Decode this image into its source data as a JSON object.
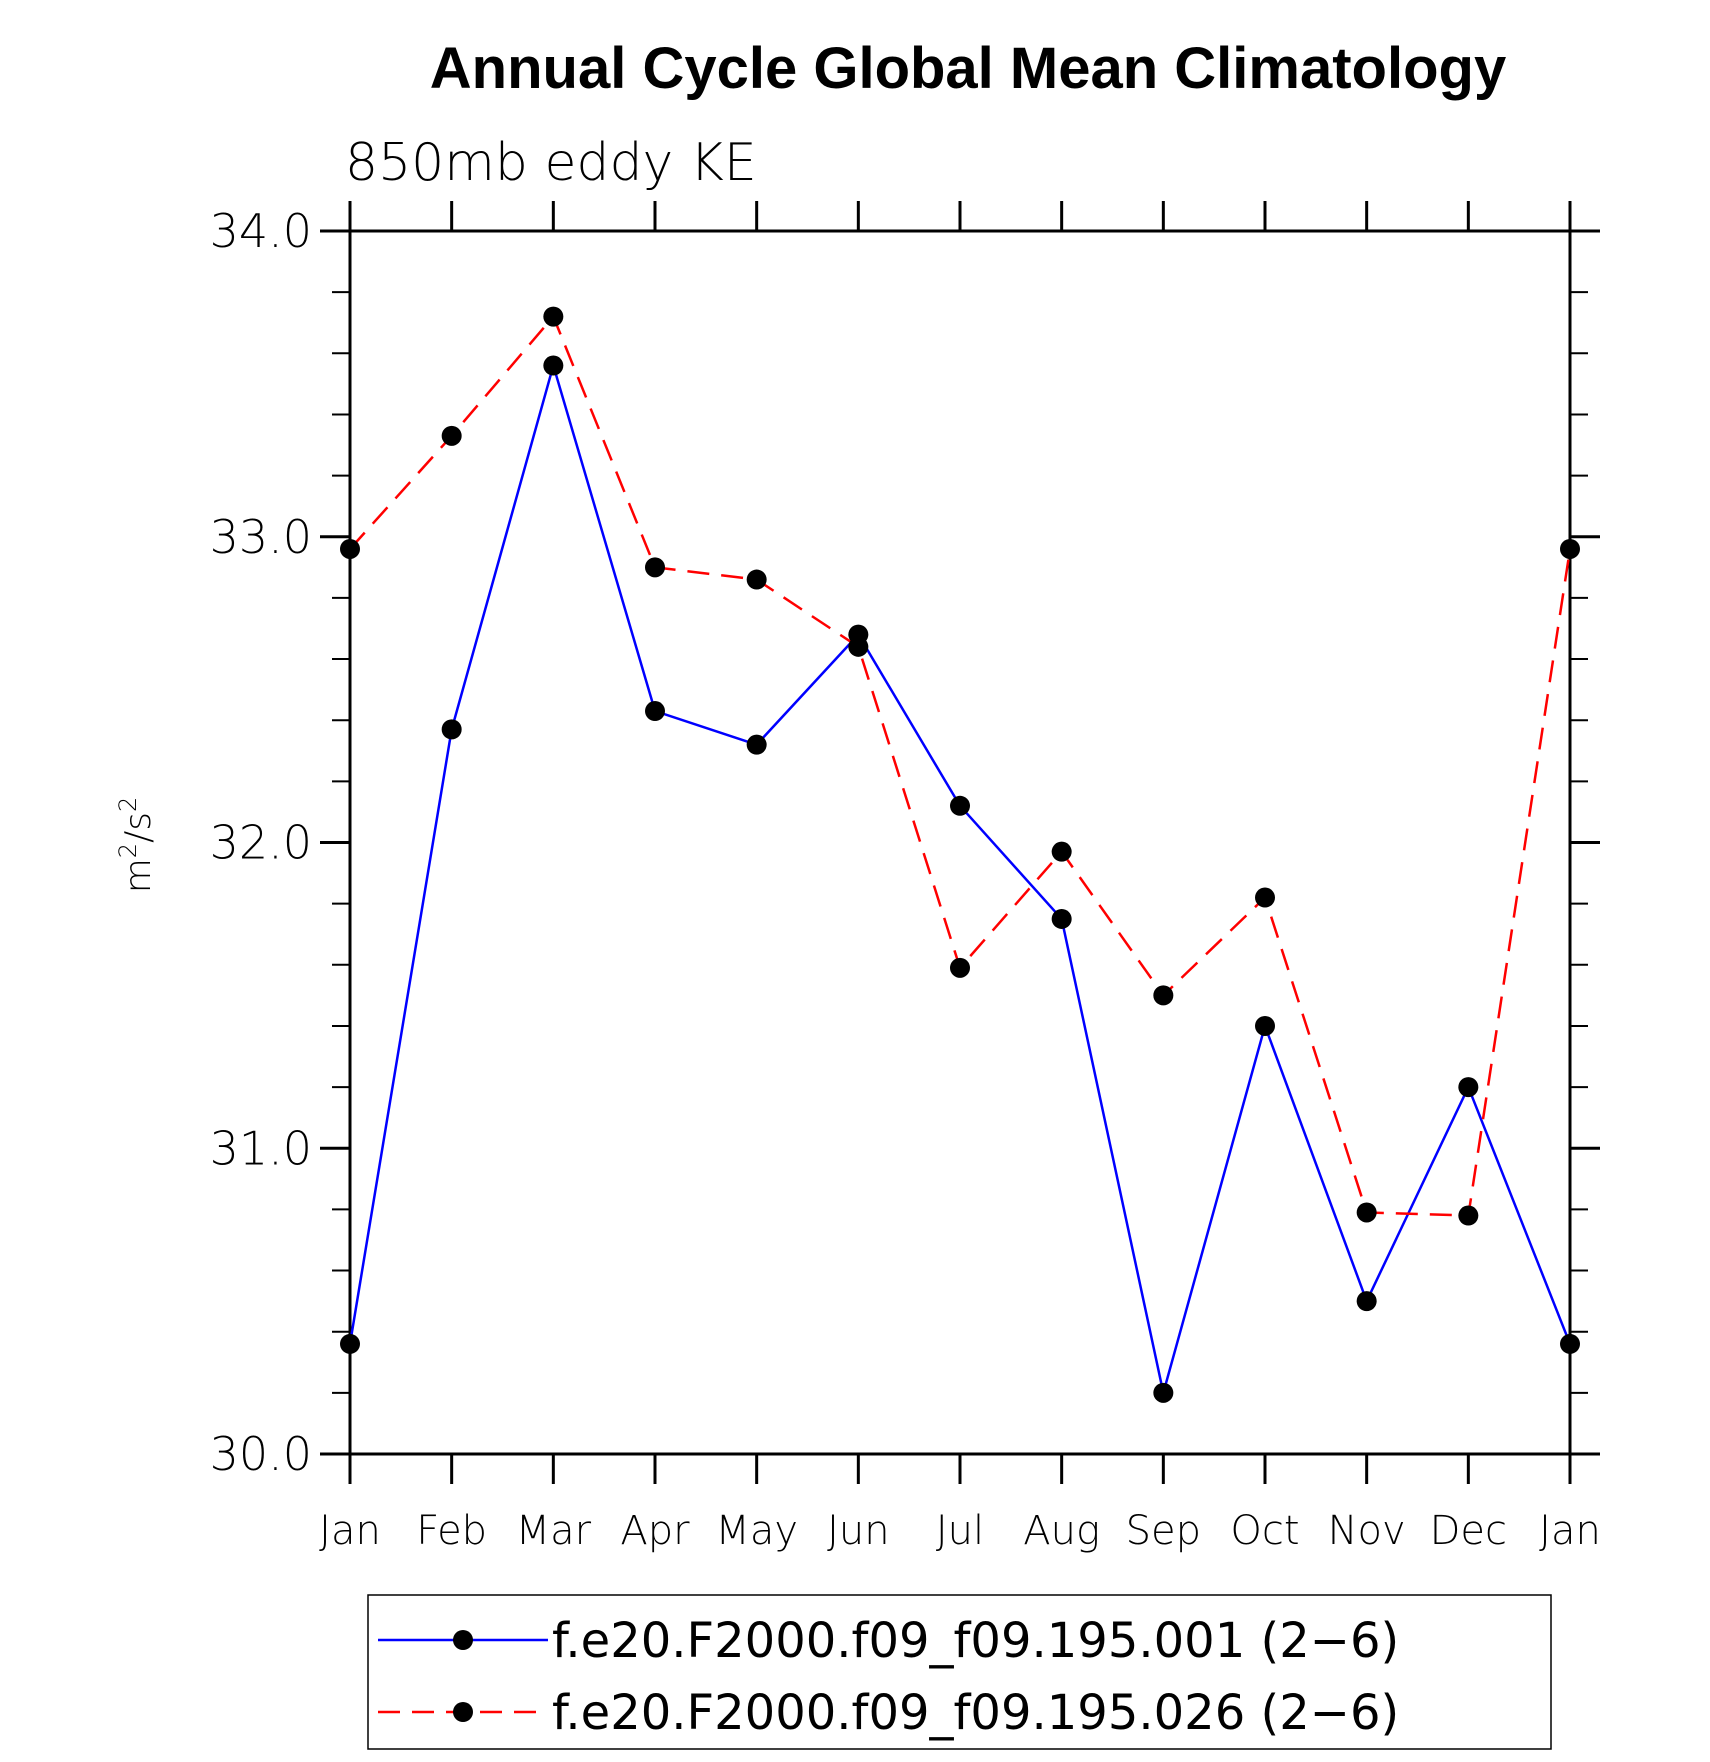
{
  "chart_data": {
    "type": "line",
    "title": "Annual Cycle Global Mean Climatology",
    "subtitle": "850mb eddy KE",
    "ylabel": "m²/s²",
    "xlabel": "",
    "categories": [
      "Jan",
      "Feb",
      "Mar",
      "Apr",
      "May",
      "Jun",
      "Jul",
      "Aug",
      "Sep",
      "Oct",
      "Nov",
      "Dec",
      "Jan"
    ],
    "ylim": [
      30.0,
      34.0
    ],
    "yticks": [
      "30.0",
      "31.0",
      "32.0",
      "33.0",
      "34.0"
    ],
    "series": [
      {
        "name": "f.e20.F2000.f09_f09.195.001 (2−6)",
        "color": "#0000ff",
        "dash": "solid",
        "values": [
          30.36,
          32.37,
          33.56,
          32.43,
          32.32,
          32.68,
          32.12,
          31.75,
          30.2,
          31.4,
          30.5,
          31.2,
          30.36
        ]
      },
      {
        "name": "f.e20.F2000.f09_f09.195.026 (2−6)",
        "color": "#ff0000",
        "dash": "dashed",
        "values": [
          32.96,
          33.33,
          33.72,
          32.9,
          32.86,
          32.64,
          31.59,
          31.97,
          31.5,
          31.82,
          30.79,
          30.78,
          32.96
        ]
      }
    ],
    "marker_color": "#000000",
    "legend_position": "bottom-center"
  }
}
